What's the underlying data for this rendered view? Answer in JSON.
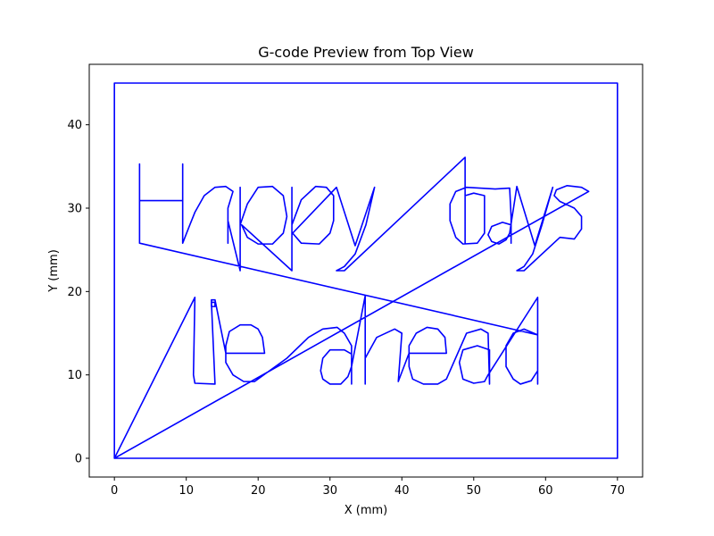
{
  "chart_data": {
    "type": "line",
    "title": "G-code Preview from Top View",
    "xlabel": "X (mm)",
    "ylabel": "Y (mm)",
    "xlim": [
      -3.5,
      73.5
    ],
    "ylim": [
      -2.25,
      47.25
    ],
    "xticks": [
      0,
      10,
      20,
      30,
      40,
      50,
      60,
      70
    ],
    "yticks": [
      0,
      10,
      20,
      30,
      40
    ],
    "grid": false,
    "legend": "none",
    "line_color": "#0000ff",
    "series": [
      {
        "points": [
          [
            0,
            0
          ],
          [
            0,
            45
          ],
          [
            70,
            45
          ],
          [
            70,
            0
          ],
          [
            0,
            0
          ],
          [
            11.2,
            19.3
          ],
          [
            11,
            10
          ],
          [
            11.2,
            9
          ],
          [
            14,
            8.9
          ],
          [
            13.5,
            18.7
          ],
          [
            14,
            18.7
          ],
          [
            14,
            18.2
          ],
          [
            13.5,
            18.2
          ],
          [
            13.5,
            19
          ],
          [
            14,
            19
          ],
          [
            15.5,
            12.6
          ],
          [
            20.9,
            12.6
          ],
          [
            20.6,
            14.5
          ],
          [
            20,
            15.5
          ],
          [
            19,
            16
          ],
          [
            17.5,
            16
          ],
          [
            16,
            15.2
          ],
          [
            15.5,
            13.5
          ],
          [
            15.5,
            11.5
          ],
          [
            16.5,
            10
          ],
          [
            18,
            9.2
          ],
          [
            19.5,
            9.2
          ],
          [
            24,
            12
          ],
          [
            27,
            14.5
          ],
          [
            29,
            15.5
          ],
          [
            31,
            15.7
          ],
          [
            32,
            15
          ],
          [
            33,
            13.5
          ],
          [
            33,
            8.9
          ],
          [
            33,
            12.5
          ],
          [
            32,
            13
          ],
          [
            30,
            13
          ],
          [
            29,
            12
          ],
          [
            28.7,
            10.5
          ],
          [
            29,
            9.5
          ],
          [
            30,
            8.9
          ],
          [
            31.5,
            8.9
          ],
          [
            32.5,
            9.8
          ],
          [
            33,
            11
          ],
          [
            34.9,
            19.5
          ],
          [
            34.9,
            8.9
          ],
          [
            34.9,
            12
          ],
          [
            36.5,
            14.5
          ],
          [
            39,
            15.5
          ],
          [
            40,
            15
          ],
          [
            39.5,
            9.2
          ],
          [
            41,
            12.6
          ],
          [
            46.2,
            12.6
          ],
          [
            46,
            14.5
          ],
          [
            45,
            15.5
          ],
          [
            43.5,
            15.7
          ],
          [
            42,
            15
          ],
          [
            41,
            13.5
          ],
          [
            41,
            11
          ],
          [
            41.5,
            9.5
          ],
          [
            43,
            8.9
          ],
          [
            45,
            8.9
          ],
          [
            46.2,
            9.5
          ],
          [
            49,
            15
          ],
          [
            51,
            15.5
          ],
          [
            52,
            15
          ],
          [
            52.2,
            8.9
          ],
          [
            52.2,
            13
          ],
          [
            50.5,
            13.5
          ],
          [
            48.5,
            13
          ],
          [
            48,
            11.5
          ],
          [
            48.5,
            9.5
          ],
          [
            50,
            9
          ],
          [
            51.5,
            9.2
          ],
          [
            52,
            10
          ],
          [
            58.9,
            19.3
          ],
          [
            58.9,
            8.9
          ],
          [
            58.9,
            10.5
          ],
          [
            58,
            9.3
          ],
          [
            56.5,
            8.9
          ],
          [
            55.5,
            9.5
          ],
          [
            54.5,
            11
          ],
          [
            54.5,
            13.5
          ],
          [
            55.5,
            15
          ],
          [
            57,
            15.5
          ],
          [
            58.9,
            14.8
          ],
          [
            3.5,
            25.8
          ],
          [
            3.5,
            35.3
          ],
          [
            3.5,
            30.9
          ],
          [
            9.5,
            30.9
          ],
          [
            9.5,
            35.3
          ],
          [
            9.5,
            25.8
          ],
          [
            10.5,
            28
          ],
          [
            11.2,
            29.5
          ],
          [
            12.5,
            31.5
          ],
          [
            14,
            32.5
          ],
          [
            15.5,
            32.6
          ],
          [
            16.5,
            32
          ],
          [
            15.8,
            30
          ],
          [
            15.8,
            25.8
          ],
          [
            15.8,
            28.5
          ],
          [
            17.5,
            22.5
          ],
          [
            17.5,
            32.5
          ],
          [
            17.5,
            28
          ],
          [
            18.5,
            30.5
          ],
          [
            20,
            32.5
          ],
          [
            22,
            32.6
          ],
          [
            23.5,
            31.5
          ],
          [
            24,
            29
          ],
          [
            23.5,
            27
          ],
          [
            22,
            25.7
          ],
          [
            20,
            25.7
          ],
          [
            18.5,
            26.5
          ],
          [
            17.7,
            28
          ],
          [
            24.7,
            22.5
          ],
          [
            24.7,
            32.5
          ],
          [
            24.7,
            28
          ],
          [
            26,
            31
          ],
          [
            28,
            32.6
          ],
          [
            29.5,
            32.5
          ],
          [
            30.5,
            31.5
          ],
          [
            30.5,
            28.5
          ],
          [
            30,
            27
          ],
          [
            28.5,
            25.7
          ],
          [
            26,
            25.8
          ],
          [
            24.8,
            27
          ],
          [
            30.9,
            32.5
          ],
          [
            33.5,
            25.5
          ],
          [
            36.2,
            32.5
          ],
          [
            35,
            28
          ],
          [
            33.5,
            24.5
          ],
          [
            32,
            23
          ],
          [
            30.9,
            22.5
          ],
          [
            32,
            22.5
          ],
          [
            48.8,
            36.1
          ],
          [
            48.8,
            25.8
          ],
          [
            48.8,
            31.5
          ],
          [
            50,
            31.8
          ],
          [
            51.5,
            31.5
          ],
          [
            51.5,
            27
          ],
          [
            50.5,
            25.8
          ],
          [
            48.5,
            25.7
          ],
          [
            47.5,
            26.5
          ],
          [
            46.7,
            28.5
          ],
          [
            46.7,
            30.5
          ],
          [
            47.5,
            32
          ],
          [
            49,
            32.5
          ],
          [
            53,
            32.3
          ],
          [
            55,
            32.4
          ],
          [
            55.2,
            29
          ],
          [
            55.2,
            25.8
          ],
          [
            55.2,
            28
          ],
          [
            54,
            28.3
          ],
          [
            52.5,
            27.8
          ],
          [
            52,
            26.8
          ],
          [
            52.5,
            26
          ],
          [
            53.5,
            25.7
          ],
          [
            54.5,
            26.2
          ],
          [
            55,
            27
          ],
          [
            56,
            32.6
          ],
          [
            58.5,
            25.5
          ],
          [
            61,
            32.5
          ],
          [
            59.5,
            28
          ],
          [
            58.2,
            24.5
          ],
          [
            57,
            23
          ],
          [
            56,
            22.5
          ],
          [
            57,
            22.5
          ],
          [
            62,
            26.5
          ],
          [
            64,
            26.3
          ],
          [
            65,
            27.5
          ],
          [
            65,
            29
          ],
          [
            64,
            30
          ],
          [
            62,
            30.8
          ],
          [
            61.2,
            31.5
          ],
          [
            61.5,
            32.2
          ],
          [
            63,
            32.7
          ],
          [
            65,
            32.5
          ],
          [
            66,
            32
          ],
          [
            0,
            0
          ]
        ]
      }
    ]
  }
}
